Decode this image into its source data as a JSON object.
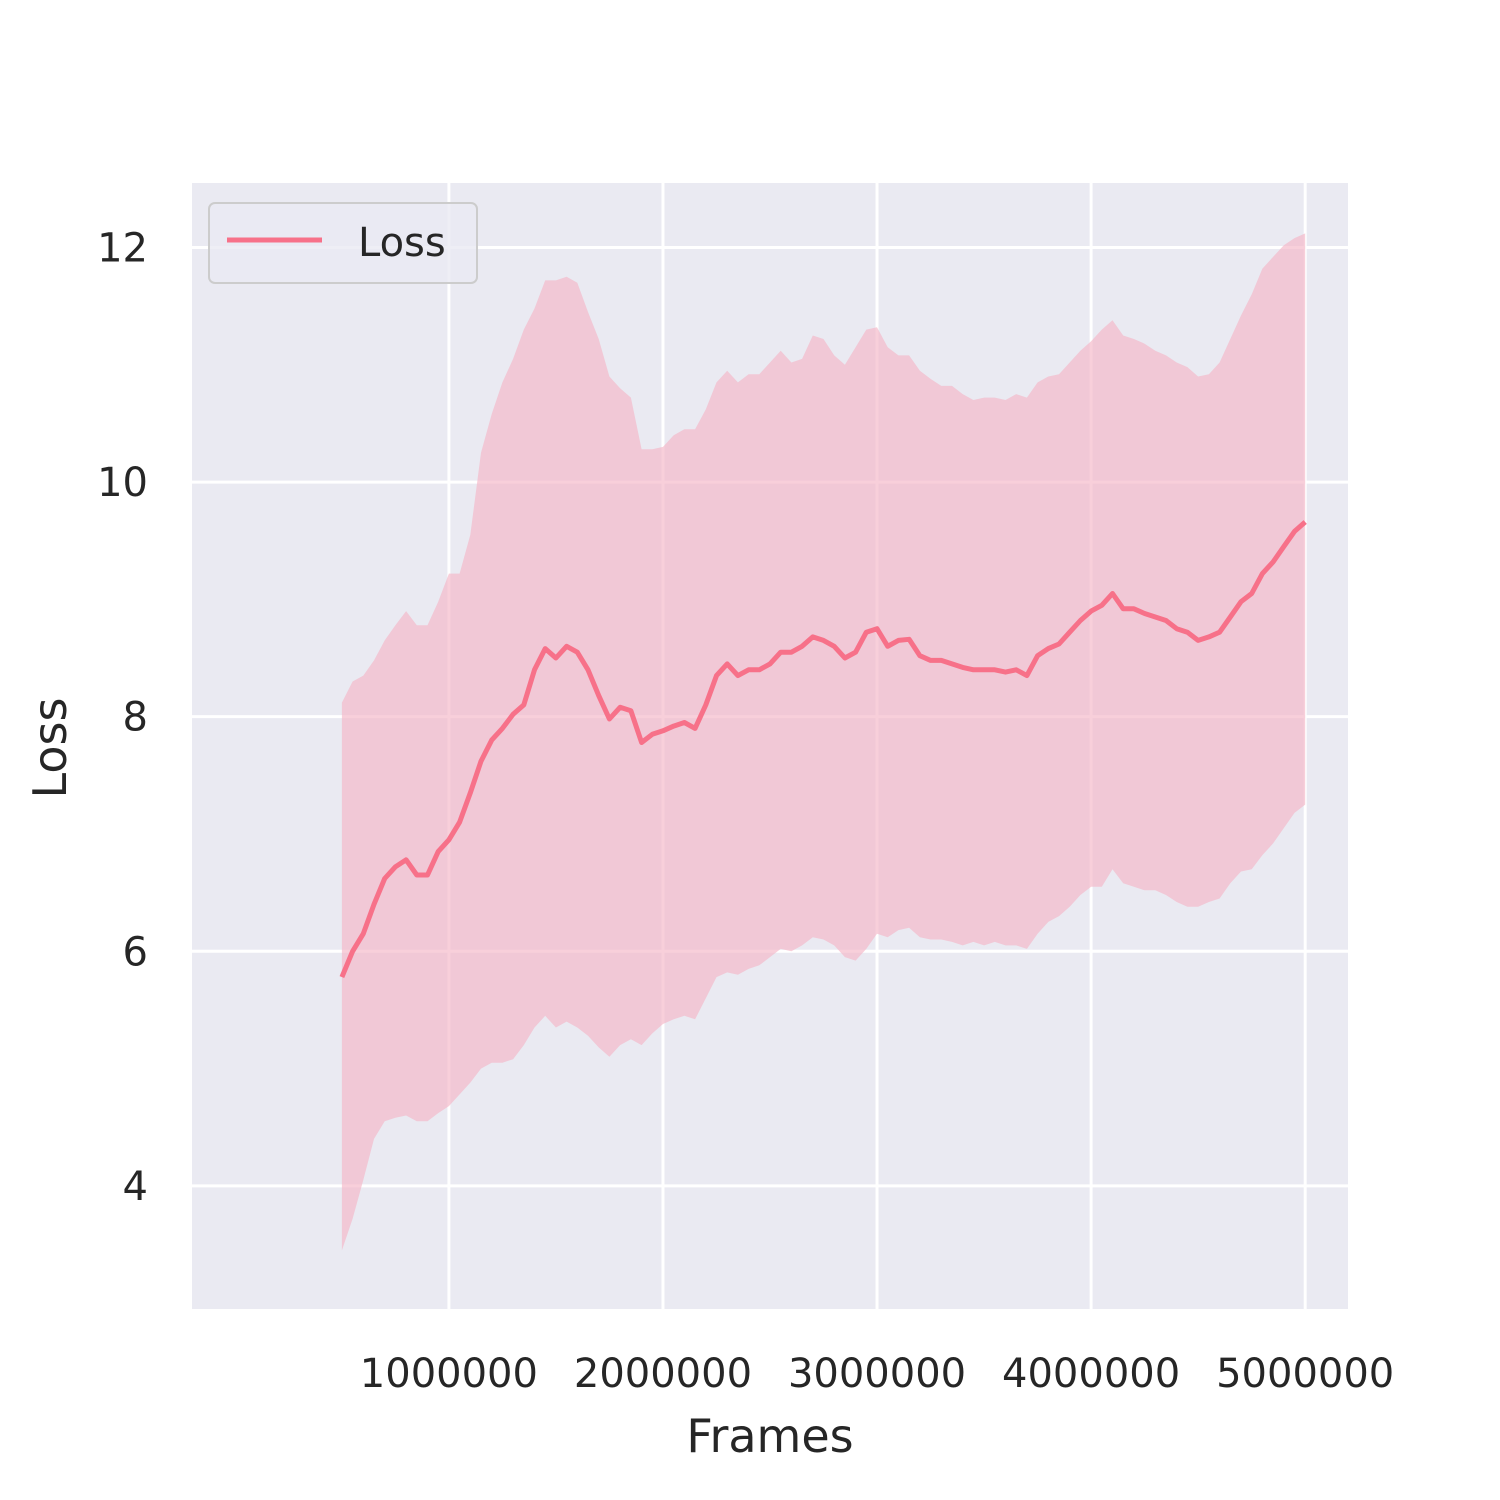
{
  "chart_data": {
    "type": "line",
    "title": "",
    "xlabel": "Frames",
    "ylabel": "Loss",
    "xlim": [
      -200000,
      5200000
    ],
    "ylim": [
      2.95,
      12.55
    ],
    "xticks": [
      1000000,
      2000000,
      3000000,
      4000000,
      5000000
    ],
    "xtick_labels": [
      "1000000",
      "2000000",
      "3000000",
      "4000000",
      "5000000"
    ],
    "yticks": [
      4,
      6,
      8,
      10,
      12
    ],
    "ytick_labels": [
      "4",
      "6",
      "8",
      "10",
      "12"
    ],
    "grid": true,
    "legend": {
      "position": "top-left",
      "entries": [
        "Loss"
      ]
    },
    "colors": {
      "line": "#f77189",
      "band": "#f4b6c6",
      "background": "#eaeaf2",
      "grid": "#ffffff"
    },
    "series": [
      {
        "name": "Loss",
        "x": [
          500000,
          550000,
          600000,
          650000,
          700000,
          750000,
          800000,
          850000,
          900000,
          950000,
          1000000,
          1050000,
          1100000,
          1150000,
          1200000,
          1250000,
          1300000,
          1350000,
          1400000,
          1450000,
          1500000,
          1550000,
          1600000,
          1650000,
          1700000,
          1750000,
          1800000,
          1850000,
          1900000,
          1950000,
          2000000,
          2050000,
          2100000,
          2150000,
          2200000,
          2250000,
          2300000,
          2350000,
          2400000,
          2450000,
          2500000,
          2550000,
          2600000,
          2650000,
          2700000,
          2750000,
          2800000,
          2850000,
          2900000,
          2950000,
          3000000,
          3050000,
          3100000,
          3150000,
          3200000,
          3250000,
          3300000,
          3350000,
          3400000,
          3450000,
          3500000,
          3550000,
          3600000,
          3650000,
          3700000,
          3750000,
          3800000,
          3850000,
          3900000,
          3950000,
          4000000,
          4050000,
          4100000,
          4150000,
          4200000,
          4250000,
          4300000,
          4350000,
          4400000,
          4450000,
          4500000,
          4550000,
          4600000,
          4650000,
          4700000,
          4750000,
          4800000,
          4850000,
          4900000,
          4950000,
          5000000
        ],
        "y": [
          5.78,
          6.0,
          6.15,
          6.4,
          6.62,
          6.72,
          6.78,
          6.65,
          6.65,
          6.85,
          6.95,
          7.1,
          7.35,
          7.62,
          7.8,
          7.9,
          8.02,
          8.1,
          8.4,
          8.58,
          8.5,
          8.6,
          8.55,
          8.4,
          8.18,
          7.98,
          8.08,
          8.05,
          7.78,
          7.85,
          7.88,
          7.92,
          7.95,
          7.9,
          8.1,
          8.35,
          8.45,
          8.35,
          8.4,
          8.4,
          8.45,
          8.55,
          8.55,
          8.6,
          8.68,
          8.65,
          8.6,
          8.5,
          8.55,
          8.72,
          8.75,
          8.6,
          8.65,
          8.66,
          8.52,
          8.48,
          8.48,
          8.45,
          8.42,
          8.4,
          8.4,
          8.4,
          8.38,
          8.4,
          8.35,
          8.52,
          8.58,
          8.62,
          8.72,
          8.82,
          8.9,
          8.95,
          9.05,
          8.92,
          8.92,
          8.88,
          8.85,
          8.82,
          8.75,
          8.72,
          8.65,
          8.68,
          8.72,
          8.85,
          8.98,
          9.05,
          9.22,
          9.32,
          9.45,
          9.58,
          9.66
        ],
        "lower": [
          3.45,
          3.72,
          4.05,
          4.4,
          4.55,
          4.58,
          4.6,
          4.55,
          4.55,
          4.62,
          4.68,
          4.78,
          4.88,
          5.0,
          5.05,
          5.05,
          5.08,
          5.2,
          5.35,
          5.45,
          5.35,
          5.4,
          5.35,
          5.28,
          5.18,
          5.1,
          5.2,
          5.25,
          5.2,
          5.3,
          5.38,
          5.42,
          5.45,
          5.42,
          5.6,
          5.78,
          5.82,
          5.8,
          5.85,
          5.88,
          5.95,
          6.02,
          6.0,
          6.05,
          6.12,
          6.1,
          6.05,
          5.95,
          5.92,
          6.02,
          6.15,
          6.12,
          6.18,
          6.2,
          6.12,
          6.1,
          6.1,
          6.08,
          6.05,
          6.08,
          6.05,
          6.08,
          6.05,
          6.05,
          6.02,
          6.15,
          6.25,
          6.3,
          6.38,
          6.48,
          6.55,
          6.55,
          6.7,
          6.58,
          6.55,
          6.52,
          6.52,
          6.48,
          6.42,
          6.38,
          6.38,
          6.42,
          6.45,
          6.58,
          6.68,
          6.7,
          6.82,
          6.92,
          7.05,
          7.18,
          7.25
        ],
        "upper": [
          8.12,
          8.3,
          8.35,
          8.48,
          8.65,
          8.78,
          8.9,
          8.78,
          8.78,
          8.98,
          9.22,
          9.22,
          9.55,
          10.25,
          10.58,
          10.85,
          11.05,
          11.3,
          11.48,
          11.72,
          11.72,
          11.75,
          11.7,
          11.45,
          11.22,
          10.9,
          10.8,
          10.72,
          10.28,
          10.28,
          10.3,
          10.4,
          10.45,
          10.45,
          10.62,
          10.85,
          10.95,
          10.85,
          10.92,
          10.92,
          11.02,
          11.12,
          11.02,
          11.05,
          11.25,
          11.22,
          11.08,
          11.0,
          11.15,
          11.3,
          11.32,
          11.15,
          11.08,
          11.08,
          10.95,
          10.88,
          10.82,
          10.82,
          10.75,
          10.7,
          10.72,
          10.72,
          10.7,
          10.75,
          10.72,
          10.85,
          10.9,
          10.92,
          11.02,
          11.12,
          11.2,
          11.3,
          11.38,
          11.25,
          11.22,
          11.18,
          11.12,
          11.08,
          11.02,
          10.98,
          10.9,
          10.92,
          11.02,
          11.22,
          11.42,
          11.6,
          11.82,
          11.92,
          12.02,
          12.08,
          12.12
        ]
      }
    ]
  }
}
